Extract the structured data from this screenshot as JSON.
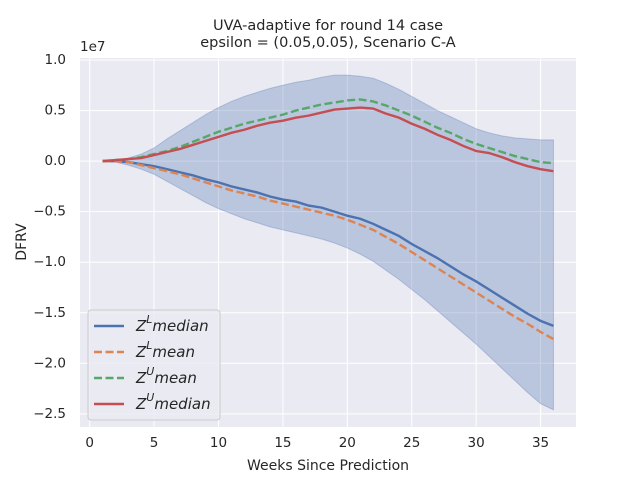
{
  "chart_data": {
    "type": "line",
    "title": "UVA-adaptive for round 14 case",
    "subtitle": "epsilon = (0.05,0.05), Scenario C-A",
    "x_label": "Weeks Since Prediction",
    "y_label": "DFRV",
    "y_offset_label": "1e7",
    "x": [
      1,
      2,
      3,
      4,
      5,
      6,
      7,
      8,
      9,
      10,
      11,
      12,
      13,
      14,
      15,
      16,
      17,
      18,
      19,
      20,
      21,
      22,
      23,
      24,
      25,
      26,
      27,
      28,
      29,
      30,
      31,
      32,
      33,
      34,
      35,
      36
    ],
    "xlim": [
      -0.75,
      37.75
    ],
    "xticks": [
      0,
      5,
      10,
      15,
      20,
      25,
      30,
      35
    ],
    "ylim": [
      -2.63,
      1.02
    ],
    "yticks": [
      {
        "value": 1.0,
        "label": "1.0"
      },
      0.5,
      {
        "value": 0.0,
        "label": "0.0"
      },
      {
        "value": -0.5,
        "label": "−0.5"
      },
      {
        "value": -1.0,
        "label": "−1.0"
      },
      {
        "value": -1.5,
        "label": "−1.5"
      },
      {
        "value": -2.0,
        "label": "−2.0"
      },
      {
        "value": -2.5,
        "label": "−2.5"
      }
    ],
    "grid": true,
    "legend": "lower left",
    "band": {
      "color": "#4c72b0",
      "upper": [
        0,
        0.01,
        0.03,
        0.07,
        0.13,
        0.22,
        0.3,
        0.38,
        0.46,
        0.53,
        0.59,
        0.64,
        0.68,
        0.72,
        0.75,
        0.78,
        0.8,
        0.83,
        0.85,
        0.85,
        0.84,
        0.82,
        0.77,
        0.71,
        0.64,
        0.57,
        0.5,
        0.44,
        0.38,
        0.32,
        0.28,
        0.25,
        0.23,
        0.22,
        0.21,
        0.21
      ],
      "lower": [
        0,
        -0.01,
        -0.04,
        -0.08,
        -0.13,
        -0.2,
        -0.27,
        -0.34,
        -0.41,
        -0.47,
        -0.52,
        -0.57,
        -0.61,
        -0.65,
        -0.68,
        -0.71,
        -0.74,
        -0.77,
        -0.81,
        -0.86,
        -0.92,
        -0.99,
        -1.08,
        -1.17,
        -1.27,
        -1.37,
        -1.48,
        -1.59,
        -1.7,
        -1.81,
        -1.93,
        -2.05,
        -2.17,
        -2.29,
        -2.4,
        -2.46
      ]
    },
    "series": [
      {
        "name": "Z^L median",
        "color": "#4c72b0",
        "dash": false,
        "values": [
          0,
          0,
          -0.01,
          -0.03,
          -0.05,
          -0.08,
          -0.11,
          -0.14,
          -0.18,
          -0.21,
          -0.25,
          -0.28,
          -0.31,
          -0.35,
          -0.38,
          -0.4,
          -0.44,
          -0.46,
          -0.5,
          -0.54,
          -0.57,
          -0.62,
          -0.68,
          -0.74,
          -0.82,
          -0.89,
          -0.96,
          -1.04,
          -1.12,
          -1.19,
          -1.27,
          -1.35,
          -1.43,
          -1.51,
          -1.58,
          -1.63
        ]
      },
      {
        "name": "Z^L mean",
        "color": "#dd8452",
        "dash": true,
        "values": [
          0,
          0,
          -0.01,
          -0.04,
          -0.07,
          -0.1,
          -0.13,
          -0.17,
          -0.21,
          -0.25,
          -0.29,
          -0.32,
          -0.35,
          -0.39,
          -0.42,
          -0.45,
          -0.48,
          -0.51,
          -0.54,
          -0.58,
          -0.63,
          -0.68,
          -0.75,
          -0.82,
          -0.9,
          -0.98,
          -1.06,
          -1.14,
          -1.22,
          -1.3,
          -1.38,
          -1.46,
          -1.54,
          -1.61,
          -1.69,
          -1.76
        ]
      },
      {
        "name": "Z^U mean",
        "color": "#55a868",
        "dash": true,
        "values": [
          0,
          0.01,
          0.02,
          0.04,
          0.07,
          0.1,
          0.14,
          0.19,
          0.24,
          0.29,
          0.33,
          0.37,
          0.4,
          0.43,
          0.46,
          0.5,
          0.53,
          0.56,
          0.58,
          0.6,
          0.61,
          0.59,
          0.55,
          0.5,
          0.45,
          0.39,
          0.33,
          0.28,
          0.22,
          0.17,
          0.13,
          0.09,
          0.05,
          0.02,
          -0.01,
          -0.02
        ]
      },
      {
        "name": "Z^U median",
        "color": "#c44e52",
        "dash": false,
        "values": [
          0,
          0.01,
          0.02,
          0.03,
          0.06,
          0.09,
          0.12,
          0.16,
          0.2,
          0.24,
          0.28,
          0.31,
          0.35,
          0.38,
          0.4,
          0.43,
          0.45,
          0.48,
          0.51,
          0.52,
          0.53,
          0.52,
          0.47,
          0.43,
          0.37,
          0.32,
          0.26,
          0.21,
          0.15,
          0.1,
          0.08,
          0.04,
          -0.01,
          -0.05,
          -0.08,
          -0.1
        ]
      }
    ]
  }
}
